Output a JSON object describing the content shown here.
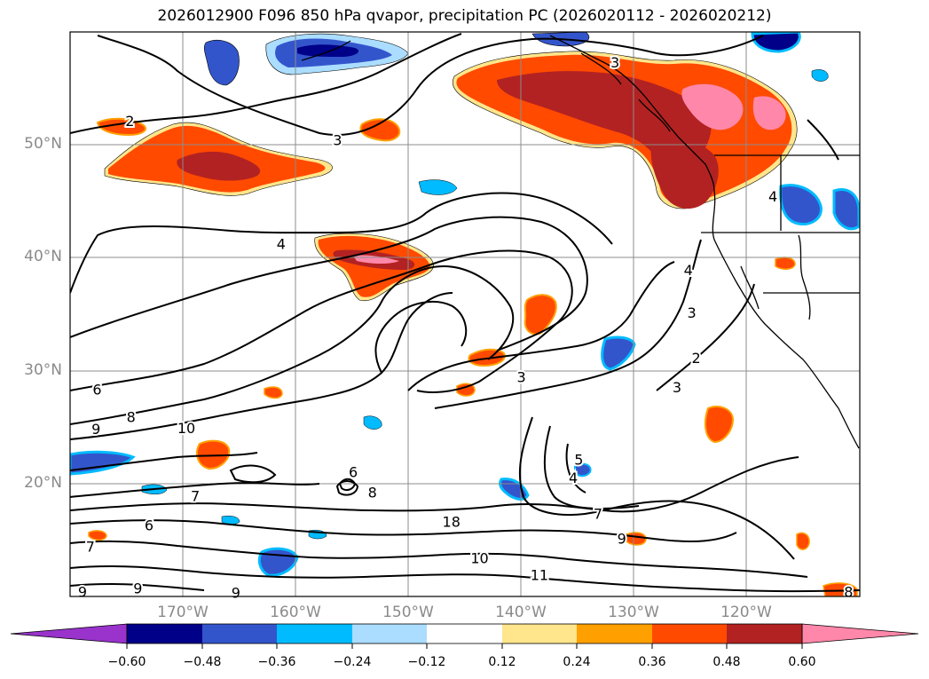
{
  "title": "2026012900 F096 850 hPa qvapor, precipitation PC (2026020112 - 2026020212)",
  "map": {
    "projection": "cylindrical",
    "lon_range": [
      -180,
      -110
    ],
    "lat_range": [
      10,
      60
    ],
    "lat_labels": [
      {
        "lat": 50,
        "text": "50°N"
      },
      {
        "lat": 40,
        "text": "40°N"
      },
      {
        "lat": 30,
        "text": "30°N"
      },
      {
        "lat": 20,
        "text": "20°N"
      }
    ],
    "lon_labels": [
      {
        "lon": -170,
        "text": "170°W"
      },
      {
        "lon": -160,
        "text": "160°W"
      },
      {
        "lon": -150,
        "text": "150°W"
      },
      {
        "lon": -140,
        "text": "140°W"
      },
      {
        "lon": -130,
        "text": "130°W"
      },
      {
        "lon": -120,
        "text": "120°W"
      }
    ],
    "contour_labels": [
      {
        "lon": -174.7,
        "lat": 52.1,
        "text": "2"
      },
      {
        "lon": -156.3,
        "lat": 50.4,
        "text": "3"
      },
      {
        "lon": -161.3,
        "lat": 41.2,
        "text": "4"
      },
      {
        "lon": -117.7,
        "lat": 45.4,
        "text": "4"
      },
      {
        "lon": -131.7,
        "lat": 57.3,
        "text": "3"
      },
      {
        "lon": -125.2,
        "lat": 38.9,
        "text": "4"
      },
      {
        "lon": -124.9,
        "lat": 35.1,
        "text": "3"
      },
      {
        "lon": -124.5,
        "lat": 31.1,
        "text": "2"
      },
      {
        "lon": -126.2,
        "lat": 28.5,
        "text": "3"
      },
      {
        "lon": -140.0,
        "lat": 29.4,
        "text": "3"
      },
      {
        "lon": -134.9,
        "lat": 22.1,
        "text": "5"
      },
      {
        "lon": -135.4,
        "lat": 20.5,
        "text": "4"
      },
      {
        "lon": -177.6,
        "lat": 28.3,
        "text": "6"
      },
      {
        "lon": -174.6,
        "lat": 25.9,
        "text": "8"
      },
      {
        "lon": -177.7,
        "lat": 24.8,
        "text": "9"
      },
      {
        "lon": -169.7,
        "lat": 24.9,
        "text": "10"
      },
      {
        "lon": -168.9,
        "lat": 18.9,
        "text": "7"
      },
      {
        "lon": -173.0,
        "lat": 16.3,
        "text": "6"
      },
      {
        "lon": -178.2,
        "lat": 14.4,
        "text": "7"
      },
      {
        "lon": -154.9,
        "lat": 21.0,
        "text": "6"
      },
      {
        "lon": -153.2,
        "lat": 19.2,
        "text": "8"
      },
      {
        "lon": -146.2,
        "lat": 16.6,
        "text": "18"
      },
      {
        "lon": -133.2,
        "lat": 17.3,
        "text": "7"
      },
      {
        "lon": -131.1,
        "lat": 15.1,
        "text": "9"
      },
      {
        "lon": -143.7,
        "lat": 13.4,
        "text": "10"
      },
      {
        "lon": -138.4,
        "lat": 11.9,
        "text": "11"
      },
      {
        "lon": -174.0,
        "lat": 10.7,
        "text": "9"
      },
      {
        "lon": -178.9,
        "lat": 10.4,
        "text": "9"
      },
      {
        "lon": -165.3,
        "lat": 10.3,
        "text": "9"
      },
      {
        "lon": -111.0,
        "lat": 10.4,
        "text": "8"
      }
    ]
  },
  "colorbar": {
    "tick_labels": [
      "−0.60",
      "−0.48",
      "−0.36",
      "−0.24",
      "−0.12",
      "0.12",
      "0.24",
      "0.36",
      "0.48",
      "0.60"
    ],
    "colors": [
      "#9933cc",
      "#000088",
      "#3355cc",
      "#00bbff",
      "#aaddff",
      "#ffffff",
      "#ffe68c",
      "#ffa000",
      "#ff4a00",
      "#b22222",
      "#ff88aa"
    ]
  },
  "palette": {
    "pos1": "#ffe68c",
    "pos2": "#ffa000",
    "pos3": "#ff4a00",
    "pos4": "#b22222",
    "pos5": "#ff88aa",
    "neg1": "#aaddff",
    "neg2": "#00bbff",
    "neg3": "#3355cc",
    "neg4": "#000088"
  }
}
